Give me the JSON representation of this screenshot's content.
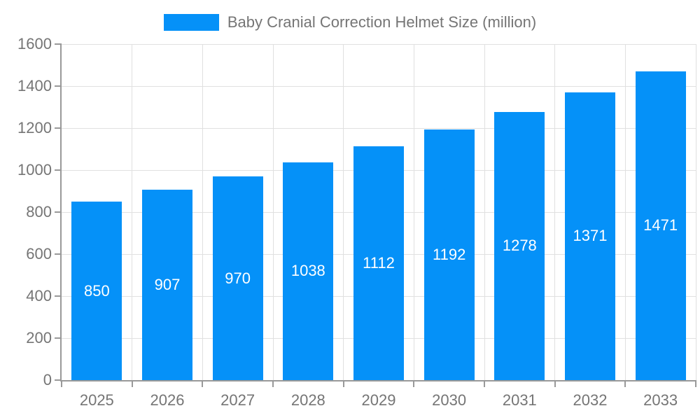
{
  "legend": {
    "label": "Baby Cranial Correction Helmet Size (million)"
  },
  "chart_data": {
    "type": "bar",
    "title": "Baby Cranial Correction Helmet Size (million)",
    "categories": [
      "2025",
      "2026",
      "2027",
      "2028",
      "2029",
      "2030",
      "2031",
      "2032",
      "2033"
    ],
    "values": [
      850,
      907,
      970,
      1038,
      1112,
      1192,
      1278,
      1371,
      1471
    ],
    "xlabel": "",
    "ylabel": "",
    "ylim": [
      0,
      1600
    ],
    "yticks": [
      0,
      200,
      400,
      600,
      800,
      1000,
      1200,
      1400,
      1600
    ],
    "grid": true,
    "legend_position": "top-center",
    "bar_label_position": "inside-middle",
    "bar_color": "#0591f8",
    "colors": {
      "grid": "#e0e0e0",
      "axis": "#999999",
      "tick_label": "#757575",
      "bar_label": "#ffffff",
      "background": "#ffffff"
    }
  }
}
